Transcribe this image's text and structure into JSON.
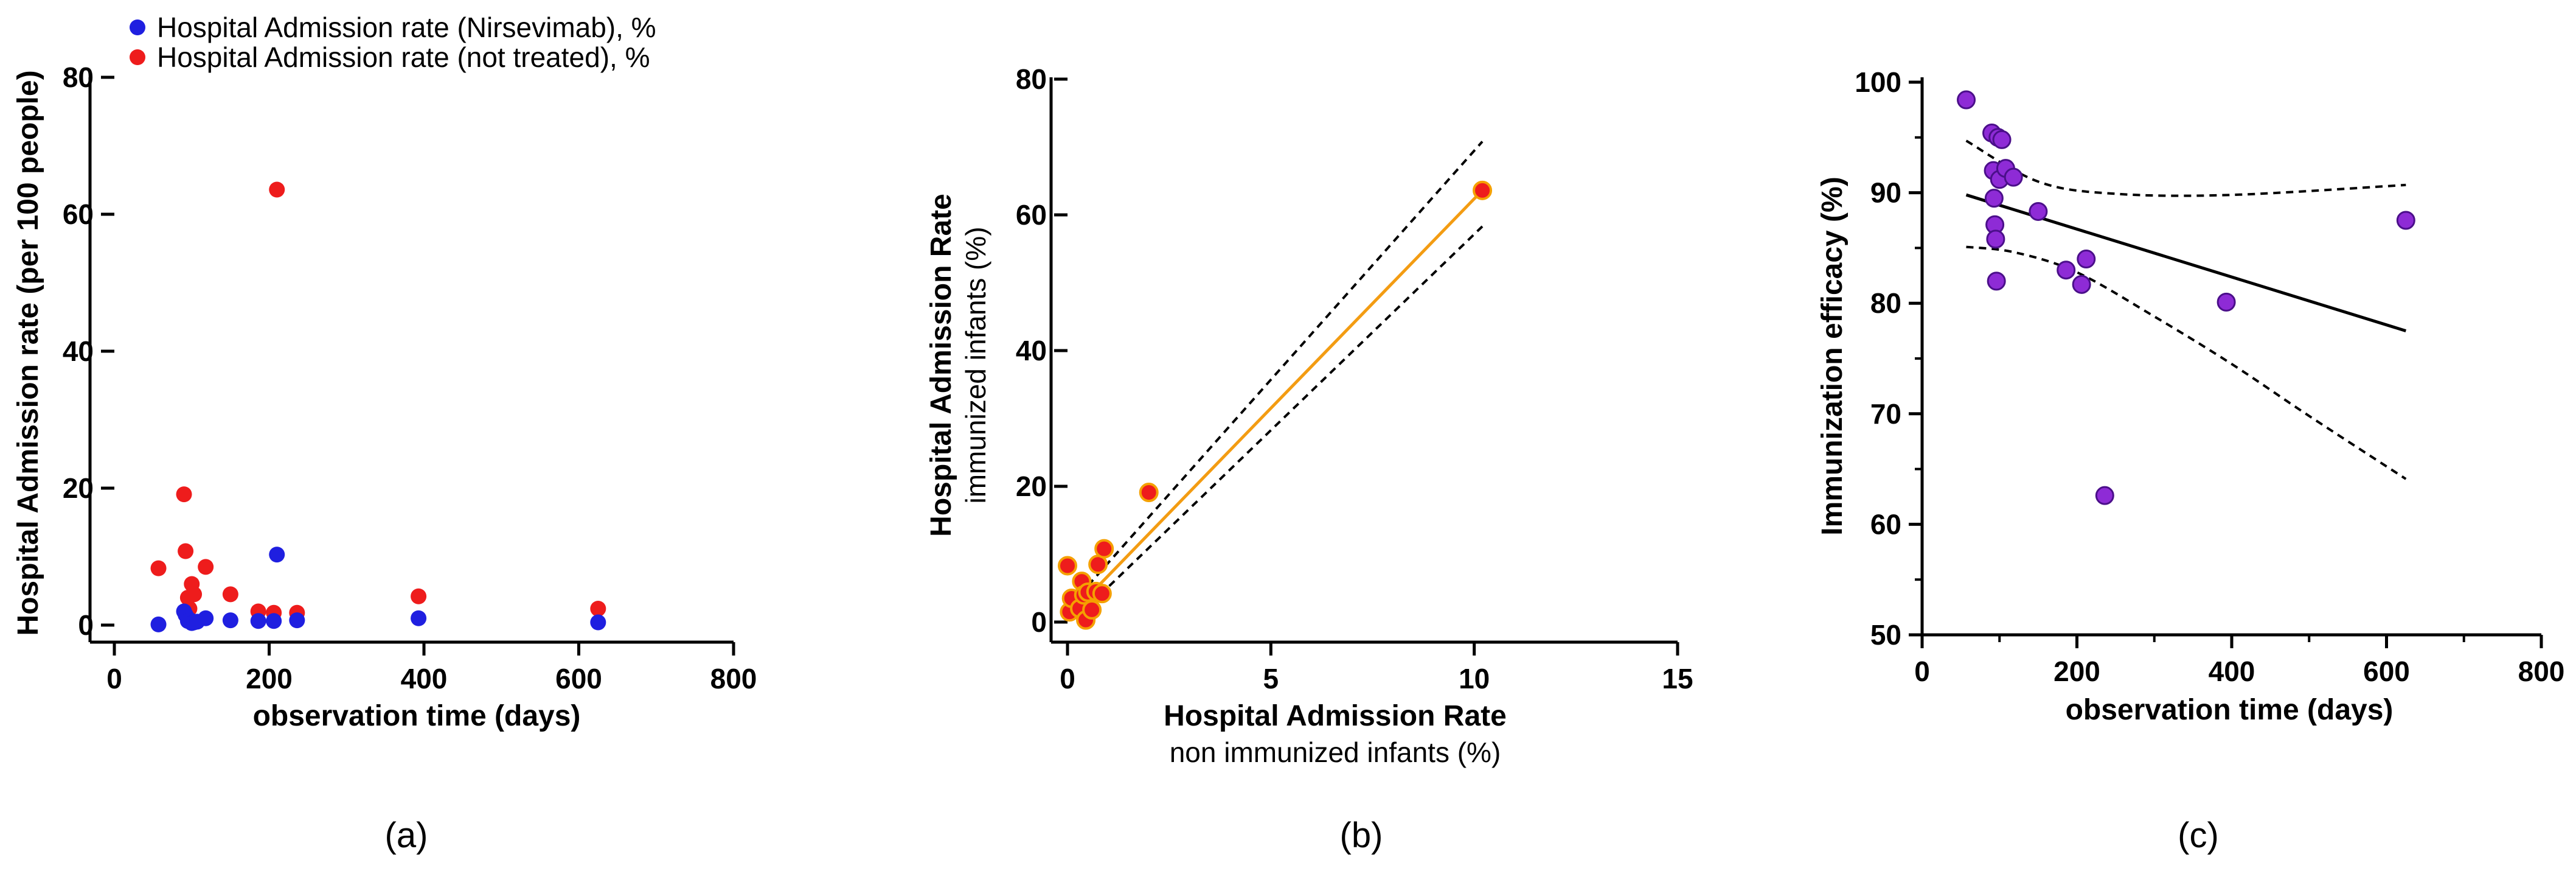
{
  "chart_data": [
    {
      "type": "scatter",
      "panel_label": "(a)",
      "xlabel": "observation time (days)",
      "ylabel": "Hospital Admission rate (per 100 people)",
      "xlim": [
        0,
        800
      ],
      "ylim": [
        0,
        80
      ],
      "x_ticks": [
        0,
        200,
        400,
        600,
        800
      ],
      "y_ticks": [
        0,
        20,
        40,
        60,
        80
      ],
      "legend": {
        "placement": "top"
      },
      "series": [
        {
          "name": "Hospital Admission rate (Nirsevimab), %",
          "color": "#1f1fe0",
          "points": [
            [
              57,
              0.1
            ],
            [
              90,
              2.0
            ],
            [
              92,
              1.5
            ],
            [
              95,
              0.6
            ],
            [
              97,
              0.8
            ],
            [
              100,
              0.3
            ],
            [
              103,
              0.4
            ],
            [
              107,
              0.5
            ],
            [
              118,
              1.0
            ],
            [
              150,
              0.7
            ],
            [
              186,
              0.6
            ],
            [
              206,
              0.6
            ],
            [
              210,
              10.3
            ],
            [
              236,
              0.7
            ],
            [
              393,
              1.0
            ],
            [
              625,
              0.4
            ]
          ]
        },
        {
          "name": "Hospital Admission rate (not treated), %",
          "color": "#ee1c1c",
          "points": [
            [
              57,
              8.3
            ],
            [
              90,
              19.1
            ],
            [
              92,
              10.8
            ],
            [
              95,
              4.0
            ],
            [
              97,
              2.4
            ],
            [
              100,
              6.0
            ],
            [
              103,
              4.5
            ],
            [
              118,
              8.5
            ],
            [
              150,
              4.5
            ],
            [
              186,
              2.0
            ],
            [
              206,
              1.8
            ],
            [
              210,
              63.6
            ],
            [
              236,
              1.8
            ],
            [
              393,
              4.2
            ],
            [
              625,
              2.4
            ]
          ]
        }
      ]
    },
    {
      "type": "scatter",
      "panel_label": "(b)",
      "xlabel": "Hospital Admission Rate",
      "xlabel_sub": "non immunized infants (%)",
      "ylabel": "Hospital Admission Rate",
      "ylabel_sub": "immunized infants (%)",
      "xlim": [
        0,
        15
      ],
      "ylim": [
        0,
        80
      ],
      "x_ticks": [
        0,
        5,
        10,
        15
      ],
      "y_ticks": [
        0,
        20,
        40,
        60,
        80
      ],
      "point_color": "#ee1c1c",
      "point_edge": "#f5a000",
      "line_color": "#f39c12",
      "points": [
        [
          0.0,
          8.3
        ],
        [
          0.05,
          1.5
        ],
        [
          0.1,
          3.5
        ],
        [
          0.3,
          2.0
        ],
        [
          0.35,
          6.0
        ],
        [
          0.4,
          4.0
        ],
        [
          0.45,
          0.3
        ],
        [
          0.5,
          4.4
        ],
        [
          0.6,
          1.8
        ],
        [
          0.7,
          4.5
        ],
        [
          0.75,
          8.5
        ],
        [
          0.85,
          4.2
        ],
        [
          0.9,
          10.8
        ],
        [
          2.0,
          19.1
        ],
        [
          10.2,
          63.6
        ]
      ],
      "fit_line": [
        [
          0.3,
          2.5
        ],
        [
          10.2,
          63.6
        ]
      ],
      "ci_upper": [
        [
          0.3,
          4.0
        ],
        [
          10.2,
          70.8
        ]
      ],
      "ci_lower": [
        [
          0.8,
          4.0
        ],
        [
          10.2,
          58.3
        ]
      ]
    },
    {
      "type": "scatter",
      "panel_label": "(c)",
      "xlabel": "observation time (days)",
      "ylabel": "Immunization efficacy (%)",
      "xlim": [
        0,
        800
      ],
      "ylim": [
        50,
        100
      ],
      "x_ticks": [
        0,
        200,
        400,
        600,
        800
      ],
      "y_ticks": [
        50,
        60,
        70,
        80,
        90,
        100
      ],
      "point_color": "#8e2bd6",
      "point_edge": "#4b0f8a",
      "points": [
        [
          57,
          98.4
        ],
        [
          90,
          95.4
        ],
        [
          92,
          92.0
        ],
        [
          93,
          89.5
        ],
        [
          94,
          87.1
        ],
        [
          95,
          85.8
        ],
        [
          96,
          82.0
        ],
        [
          98,
          95.0
        ],
        [
          100,
          91.2
        ],
        [
          103,
          94.8
        ],
        [
          108,
          92.2
        ],
        [
          118,
          91.4
        ],
        [
          150,
          88.3
        ],
        [
          186,
          83.0
        ],
        [
          206,
          81.7
        ],
        [
          212,
          84.0
        ],
        [
          236,
          62.6
        ],
        [
          393,
          80.1
        ],
        [
          625,
          87.5
        ]
      ],
      "fit_line": [
        [
          57,
          89.8
        ],
        [
          625,
          77.5
        ]
      ],
      "ci_upper": [
        [
          57,
          94.7
        ],
        [
          150,
          91.0
        ],
        [
          250,
          89.9
        ],
        [
          400,
          89.8
        ],
        [
          625,
          90.7
        ]
      ],
      "ci_lower": [
        [
          57,
          85.1
        ],
        [
          120,
          84.6
        ],
        [
          200,
          82.8
        ],
        [
          300,
          78.8
        ],
        [
          400,
          74.5
        ],
        [
          500,
          69.8
        ],
        [
          625,
          64.1
        ]
      ]
    }
  ]
}
